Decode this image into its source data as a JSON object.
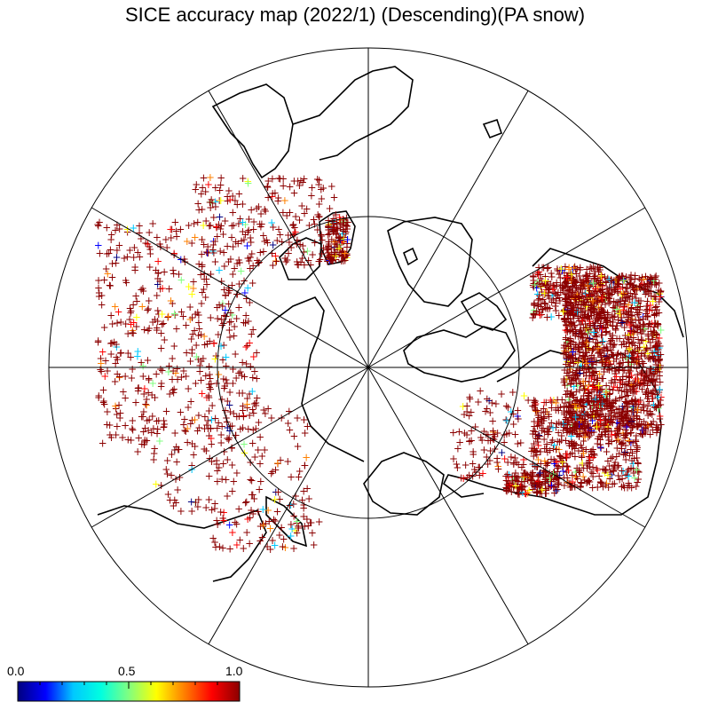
{
  "title": "SICE accuracy map (2022/1) (Descending)(PA snow)",
  "colorbar": {
    "tick_labels": [
      "0.0",
      "0.5",
      "1.0"
    ],
    "min": 0.0,
    "max": 1.0,
    "colors": [
      "#000080",
      "#0000ff",
      "#00c8ff",
      "#00ffe0",
      "#80ff80",
      "#ffff00",
      "#ff8000",
      "#ff0000",
      "#8b0000"
    ]
  },
  "map": {
    "projection": "north polar stereographic",
    "graticule": {
      "meridian_step_deg": 30,
      "latitude_circle_deg": 60
    },
    "marker": "+",
    "dominant_marker_color": "#8b0000"
  }
}
